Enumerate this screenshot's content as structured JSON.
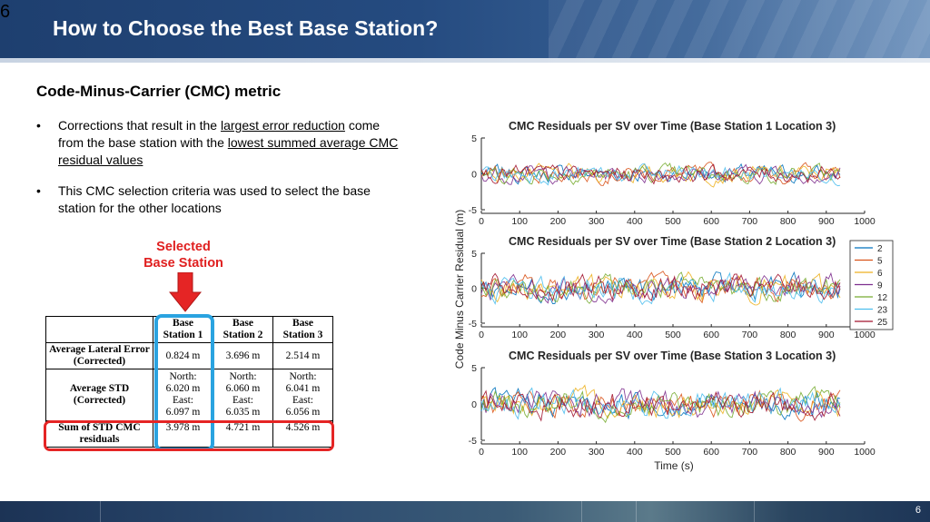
{
  "slide": {
    "number_top": "6",
    "title": "How to Choose the Best Base Station?",
    "footer_number": "6"
  },
  "content": {
    "subheading": "Code-Minus-Carrier (CMC) metric",
    "bullet1": {
      "pre": "Corrections that result in the ",
      "u1": "largest error reduction",
      "mid": " come from the base station with the ",
      "u2": "lowest summed average CMC residual values"
    },
    "bullet2": "This CMC selection criteria was used to select the base station for the other locations",
    "selected_line1": "Selected",
    "selected_line2": "Base Station",
    "accent_red": "#e52525",
    "accent_blue": "#2aa3e0"
  },
  "table": {
    "headers": [
      {
        "l1": "Base",
        "l2": "Station 1"
      },
      {
        "l1": "Base",
        "l2": "Station 2"
      },
      {
        "l1": "Base",
        "l2": "Station 3"
      }
    ],
    "rows": [
      {
        "label": "Average Lateral Error (Corrected)",
        "values": [
          "0.824 m",
          "3.696 m",
          "2.514 m"
        ]
      },
      {
        "label": "Average STD (Corrected)",
        "values": [
          {
            "a": "North:",
            "b": "6.020 m",
            "c": "East:",
            "d": "6.097 m"
          },
          {
            "a": "North:",
            "b": "6.060 m",
            "c": "East:",
            "d": "6.035 m"
          },
          {
            "a": "North:",
            "b": "6.041 m",
            "c": "East:",
            "d": "6.056 m"
          }
        ]
      },
      {
        "label": "Sum of STD CMC residuals",
        "values": [
          "3.978 m",
          "4.721 m",
          "4.526 m"
        ]
      }
    ]
  },
  "chart_data": {
    "type": "line",
    "ylabel": "Code Minus Carrier Residual (m)",
    "xlabel": "Time (s)",
    "xlim": [
      0,
      1000
    ],
    "xticks": [
      "0",
      "100",
      "200",
      "300",
      "400",
      "500",
      "600",
      "700",
      "800",
      "900",
      "1000"
    ],
    "ylim": [
      -5,
      5
    ],
    "yticks": [
      "5",
      "0",
      "-5"
    ],
    "legend": {
      "placement": "right",
      "entries": [
        "2",
        "5",
        "6",
        "9",
        "12",
        "23",
        "25"
      ]
    },
    "series_colors": [
      "#0072bd",
      "#d95319",
      "#edb120",
      "#7e2f8e",
      "#77ac30",
      "#4dbeee",
      "#a2142f"
    ],
    "subplots": [
      {
        "title": "CMC Residuals per SV over Time (Base Station 1 Location 3)",
        "amplitude": 0.8
      },
      {
        "title": "CMC Residuals per SV over Time (Base Station 2 Location 3)",
        "amplitude": 1.2
      },
      {
        "title": "CMC Residuals per SV over Time (Base Station 3 Location 3)",
        "amplitude": 1.2
      }
    ]
  }
}
